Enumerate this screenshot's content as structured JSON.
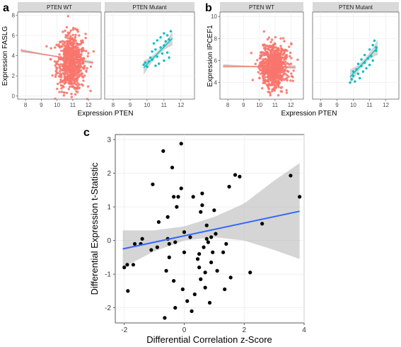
{
  "panel_labels": {
    "a": "a",
    "b": "b",
    "c": "c"
  },
  "colors": {
    "wt": "#f8766d",
    "mutant": "#00bfc4",
    "fit_line": "#3366ff",
    "band": "#b3b3b3",
    "strip": "#d9d9d9"
  },
  "chart_data": [
    {
      "type": "scatter",
      "panel": "a",
      "xlabel": "Expression PTEN",
      "ylabel": "Expression FASLG",
      "xlim": [
        7.5,
        12.8
      ],
      "ylim": [
        -0.3,
        8.3
      ],
      "x_ticks": [
        8,
        9,
        10,
        11,
        12
      ],
      "y_ticks": [
        0,
        2,
        4,
        6,
        8
      ],
      "facets": [
        {
          "name": "PTEN WT",
          "color": "#f8766d",
          "n_points": 700,
          "center": {
            "x": 10.9,
            "y": 3.3
          },
          "spread": {
            "x": 0.45,
            "y": 1.4
          },
          "fit": {
            "x": [
              7.7,
              12.3
            ],
            "y": [
              4.5,
              3.3
            ]
          }
        },
        {
          "name": "PTEN Mutant",
          "color": "#00bfc4",
          "points": [
            [
              9.8,
              3.1
            ],
            [
              9.9,
              3.3
            ],
            [
              10.0,
              2.9
            ],
            [
              10.1,
              3.4
            ],
            [
              10.2,
              3.8
            ],
            [
              10.3,
              3.6
            ],
            [
              10.3,
              4.4
            ],
            [
              10.4,
              5.2
            ],
            [
              10.5,
              3.0
            ],
            [
              10.5,
              4.6
            ],
            [
              10.6,
              3.9
            ],
            [
              10.6,
              5.5
            ],
            [
              10.7,
              3.2
            ],
            [
              10.8,
              4.8
            ],
            [
              10.8,
              5.8
            ],
            [
              10.9,
              4.2
            ],
            [
              11.0,
              3.5
            ],
            [
              11.0,
              5.0
            ],
            [
              11.0,
              6.2
            ],
            [
              11.1,
              5.4
            ],
            [
              11.2,
              4.3
            ],
            [
              11.2,
              6.0
            ],
            [
              11.3,
              3.8
            ],
            [
              11.3,
              5.6
            ],
            [
              11.4,
              6.4
            ]
          ],
          "fit": {
            "x": [
              9.8,
              11.5
            ],
            "y": [
              2.8,
              5.7
            ]
          }
        }
      ]
    },
    {
      "type": "scatter",
      "panel": "b",
      "xlabel": "Expression PTEN",
      "ylabel": "Expression IPCEF1",
      "xlim": [
        7.5,
        12.8
      ],
      "ylim": [
        2.5,
        10.4
      ],
      "x_ticks": [
        8,
        9,
        10,
        11,
        12
      ],
      "y_ticks": [
        4,
        6,
        8,
        10
      ],
      "facets": [
        {
          "name": "PTEN WT",
          "color": "#f8766d",
          "n_points": 700,
          "center": {
            "x": 10.9,
            "y": 5.5
          },
          "spread": {
            "x": 0.45,
            "y": 1.0
          },
          "fit": {
            "x": [
              7.7,
              12.3
            ],
            "y": [
              5.5,
              5.4
            ]
          }
        },
        {
          "name": "PTEN Mutant",
          "color": "#00bfc4",
          "points": [
            [
              9.8,
              4.0
            ],
            [
              9.9,
              4.3
            ],
            [
              10.0,
              4.6
            ],
            [
              10.0,
              5.0
            ],
            [
              10.1,
              4.1
            ],
            [
              10.2,
              5.2
            ],
            [
              10.3,
              4.8
            ],
            [
              10.3,
              5.7
            ],
            [
              10.4,
              4.4
            ],
            [
              10.5,
              5.5
            ],
            [
              10.5,
              6.1
            ],
            [
              10.6,
              5.0
            ],
            [
              10.7,
              5.8
            ],
            [
              10.7,
              6.5
            ],
            [
              10.8,
              5.3
            ],
            [
              10.9,
              6.2
            ],
            [
              11.0,
              5.6
            ],
            [
              11.0,
              7.0
            ],
            [
              11.1,
              6.4
            ],
            [
              11.2,
              7.4
            ],
            [
              11.2,
              6.0
            ],
            [
              11.3,
              7.8
            ],
            [
              11.4,
              6.9
            ],
            [
              11.4,
              7.2
            ]
          ],
          "fit": {
            "x": [
              9.8,
              11.5
            ],
            "y": [
              4.5,
              7.2
            ]
          }
        }
      ]
    },
    {
      "type": "scatter",
      "panel": "c",
      "xlabel": "Differential Correlation z-Score",
      "ylabel": "Differential Expression t-Statistic",
      "xlim": [
        -2.3,
        4.0
      ],
      "ylim": [
        -2.45,
        3.15
      ],
      "x_ticks": [
        -2,
        0,
        2,
        4
      ],
      "y_ticks": [
        -2,
        -1,
        0,
        1,
        2,
        3
      ],
      "points": [
        [
          -2.0,
          -0.8
        ],
        [
          -1.9,
          -0.72
        ],
        [
          -1.88,
          -1.5
        ],
        [
          -1.7,
          -0.72
        ],
        [
          -1.65,
          -0.1
        ],
        [
          -1.45,
          -0.1
        ],
        [
          -1.4,
          0.05
        ],
        [
          -1.1,
          -0.28
        ],
        [
          -1.05,
          1.67
        ],
        [
          -0.9,
          -0.2
        ],
        [
          -0.85,
          0.55
        ],
        [
          -0.7,
          2.66
        ],
        [
          -0.65,
          -2.3
        ],
        [
          -0.6,
          -0.9
        ],
        [
          -0.55,
          0.05
        ],
        [
          -0.55,
          0.7
        ],
        [
          -0.5,
          -0.1
        ],
        [
          -0.5,
          -0.5
        ],
        [
          -0.4,
          2.17
        ],
        [
          -0.35,
          -1.2
        ],
        [
          -0.35,
          1.3
        ],
        [
          -0.3,
          -0.05
        ],
        [
          -0.3,
          -2.0
        ],
        [
          -0.25,
          1.0
        ],
        [
          -0.2,
          1.3
        ],
        [
          -0.1,
          2.88
        ],
        [
          -0.1,
          1.55
        ],
        [
          -0.05,
          -1.45
        ],
        [
          0.0,
          -0.35
        ],
        [
          0.0,
          0.25
        ],
        [
          0.1,
          -1.8
        ],
        [
          0.2,
          0.1
        ],
        [
          0.25,
          -2.1
        ],
        [
          0.3,
          1.3
        ],
        [
          0.35,
          -1.6
        ],
        [
          0.45,
          -0.55
        ],
        [
          0.5,
          -0.4
        ],
        [
          0.5,
          -0.8
        ],
        [
          0.55,
          0.85
        ],
        [
          0.55,
          -1.15
        ],
        [
          0.6,
          1.4
        ],
        [
          0.6,
          1.05
        ],
        [
          0.65,
          -0.2
        ],
        [
          0.7,
          -1.4
        ],
        [
          0.7,
          -0.95
        ],
        [
          0.75,
          0.45
        ],
        [
          0.75,
          0.05
        ],
        [
          0.8,
          -0.05
        ],
        [
          0.85,
          -1.85
        ],
        [
          0.9,
          -0.65
        ],
        [
          0.9,
          0.1
        ],
        [
          0.95,
          -0.35
        ],
        [
          1.0,
          0.9
        ],
        [
          1.05,
          0.2
        ],
        [
          1.1,
          -0.9
        ],
        [
          1.3,
          -0.35
        ],
        [
          1.35,
          -1.45
        ],
        [
          1.4,
          -0.1
        ],
        [
          1.5,
          1.6
        ],
        [
          1.55,
          -1.1
        ],
        [
          1.7,
          1.95
        ],
        [
          1.85,
          1.9
        ],
        [
          2.2,
          -0.95
        ],
        [
          2.6,
          0.5
        ],
        [
          3.55,
          1.93
        ],
        [
          3.85,
          1.3
        ]
      ],
      "fit": {
        "x": [
          -2.05,
          3.85
        ],
        "y": [
          -0.25,
          0.87
        ]
      },
      "band": {
        "x": [
          -2.05,
          -1.0,
          0.0,
          1.0,
          2.0,
          3.0,
          3.85
        ],
        "lower": [
          -0.8,
          -0.32,
          0.0,
          0.1,
          0.0,
          -0.28,
          -0.55
        ],
        "upper": [
          0.3,
          0.3,
          0.42,
          0.7,
          1.1,
          1.78,
          2.3
        ]
      }
    }
  ]
}
